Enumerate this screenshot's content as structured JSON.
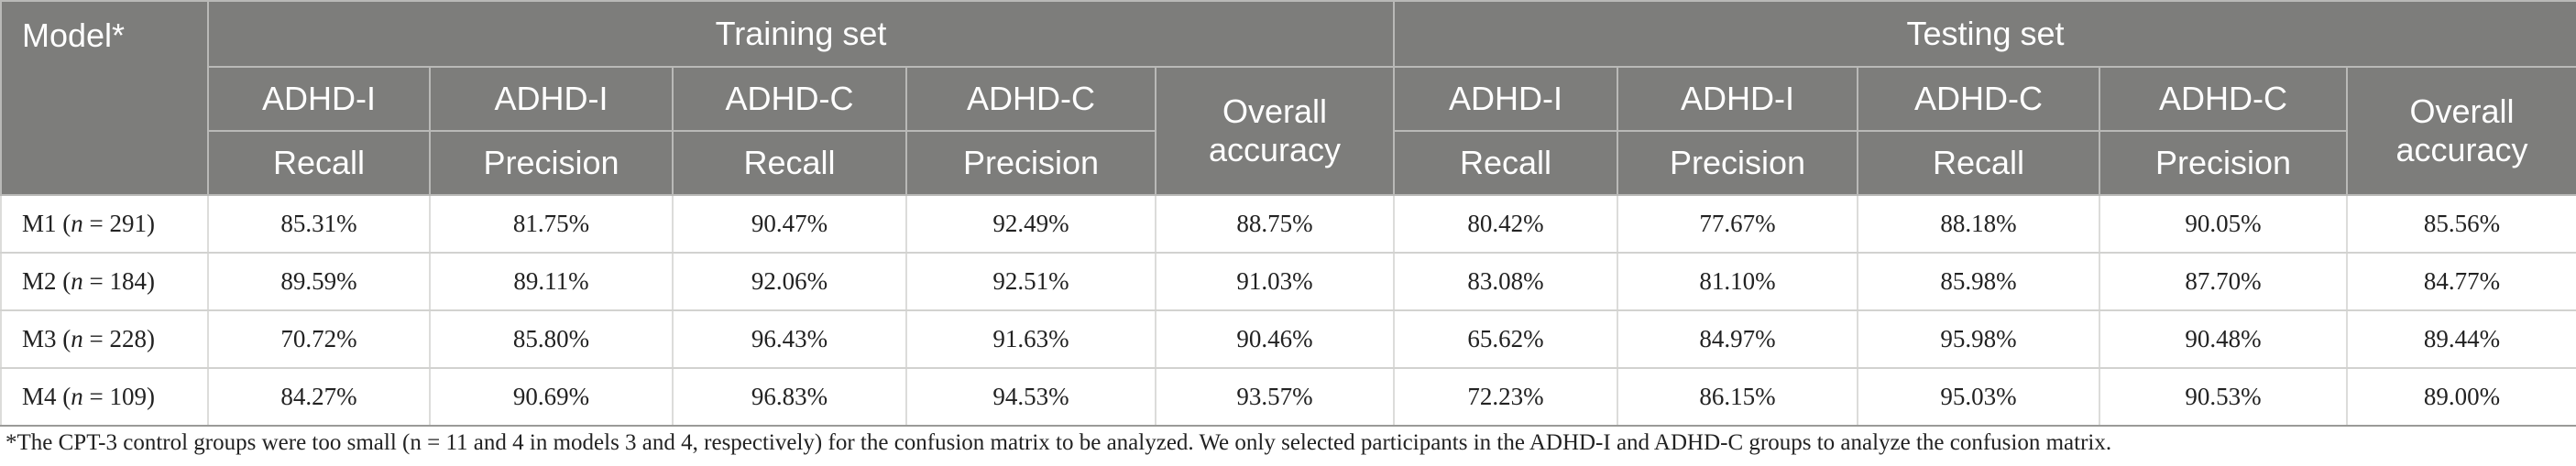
{
  "header": {
    "model_label": "Model*",
    "training_label": "Training set",
    "testing_label": "Testing set",
    "groups": [
      "ADHD-I",
      "ADHD-I",
      "ADHD-C",
      "ADHD-C"
    ],
    "metrics": [
      "Recall",
      "Precision",
      "Recall",
      "Precision"
    ],
    "overall_label": "Overall accuracy"
  },
  "rows": [
    {
      "model": "M1",
      "n": "291",
      "values": [
        "85.31%",
        "81.75%",
        "90.47%",
        "92.49%",
        "88.75%",
        "80.42%",
        "77.67%",
        "88.18%",
        "90.05%",
        "85.56%"
      ]
    },
    {
      "model": "M2",
      "n": "184",
      "values": [
        "89.59%",
        "89.11%",
        "92.06%",
        "92.51%",
        "91.03%",
        "83.08%",
        "81.10%",
        "85.98%",
        "87.70%",
        "84.77%"
      ]
    },
    {
      "model": "M3",
      "n": "228",
      "values": [
        "70.72%",
        "85.80%",
        "96.43%",
        "91.63%",
        "90.46%",
        "65.62%",
        "84.97%",
        "95.98%",
        "90.48%",
        "89.44%"
      ]
    },
    {
      "model": "M4",
      "n": "109",
      "values": [
        "84.27%",
        "90.69%",
        "96.83%",
        "94.53%",
        "93.57%",
        "72.23%",
        "86.15%",
        "95.03%",
        "90.53%",
        "89.00%"
      ]
    }
  ],
  "footnote": "*The CPT-3 control groups were too small (n = 11 and 4 in models 3 and 4, respectively) for the confusion matrix to be analyzed. We only selected participants in the ADHD-I and ADHD-C groups to analyze the confusion matrix."
}
